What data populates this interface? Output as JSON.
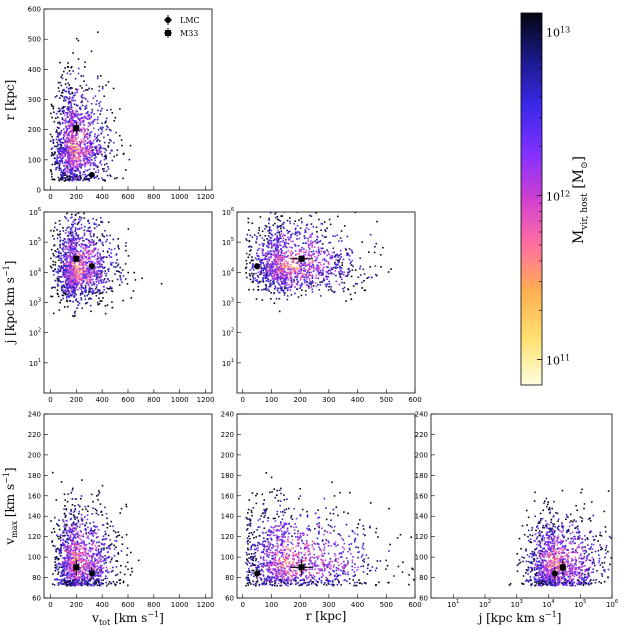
{
  "chart_data": {
    "type": "scatter",
    "title": "",
    "legend": {
      "placement": "top-right of first panel",
      "entries": [
        "LMC",
        "M33"
      ]
    },
    "colorbar": {
      "label": "M_vir,host [M_⊙]",
      "label_main": "M",
      "label_sub": "vir, host",
      "label_unit": " [M",
      "label_unit_end": "]",
      "sun": "⊙",
      "scale": "log",
      "range": [
        70000000000.0,
        13000000000000.0
      ],
      "ticks": [
        {
          "base": "10",
          "exp": "13",
          "value": 10000000000000.0
        },
        {
          "base": "10",
          "exp": "12",
          "value": 1000000000000.0
        },
        {
          "base": "10",
          "exp": "11",
          "value": 100000000000.0
        }
      ],
      "colors": [
        "#ffffe0",
        "#ffe070",
        "#ffb050",
        "#ff70a0",
        "#d040d0",
        "#8030ff",
        "#3a28e8",
        "#1a1a8a",
        "#050510"
      ]
    },
    "labels": {
      "r": "r [kpc]",
      "j_main": "j [kpc km s",
      "j_sup": "−1",
      "j_end": "]",
      "vmax_main": "v",
      "vmax_sub": "max",
      "vmax_unit": " [km s",
      "vmax_sup": "−1",
      "vmax_end": "]",
      "vtot_main": "v",
      "vtot_sub": "tot",
      "vtot_unit": " [km s",
      "vtot_sup": "−1",
      "vtot_end": "]",
      "r_x": "r [kpc]",
      "j_x_main": "j [kpc km s",
      "j_x_sup": "−1",
      "j_x_end": "]"
    },
    "panels": [
      {
        "id": "r_vs_vtot",
        "x": "vtot",
        "y": "r",
        "xlim": [
          -50,
          1250
        ],
        "ylim": [
          0,
          600
        ],
        "xscale": "linear",
        "yscale": "linear",
        "xticks": [
          "0",
          "200",
          "400",
          "600",
          "800",
          "1000",
          "1200"
        ],
        "xtick_values": [
          0,
          200,
          400,
          600,
          800,
          1000,
          1200
        ],
        "yticks": [
          "0",
          "100",
          "200",
          "300",
          "400",
          "500",
          "600"
        ],
        "ytick_values": [
          0,
          100,
          200,
          300,
          400,
          500,
          600
        ],
        "cloud": {
          "cx": 180,
          "cy": 140,
          "sx": 100,
          "sy": 90,
          "n": 1400
        },
        "LMC": {
          "x": 320,
          "y": 50,
          "xerr": 20,
          "yerr": 5
        },
        "M33": {
          "x": 200,
          "y": 205,
          "xerr": 25,
          "yerr": 20
        }
      },
      {
        "id": "j_vs_vtot",
        "x": "vtot",
        "y": "j",
        "xlim": [
          -50,
          1250
        ],
        "ylim": [
          0,
          6
        ],
        "xscale": "linear",
        "yscale": "log",
        "xticks": [
          "0",
          "200",
          "400",
          "600",
          "800",
          "1000",
          "1200"
        ],
        "xtick_values": [
          0,
          200,
          400,
          600,
          800,
          1000,
          1200
        ],
        "yticks": [
          {
            "base": "10",
            "exp": "1",
            "v": 1
          },
          {
            "base": "10",
            "exp": "2",
            "v": 2
          },
          {
            "base": "10",
            "exp": "3",
            "v": 3
          },
          {
            "base": "10",
            "exp": "4",
            "v": 4
          },
          {
            "base": "10",
            "exp": "5",
            "v": 5
          },
          {
            "base": "10",
            "exp": "6",
            "v": 6
          }
        ],
        "cloud": {
          "cx": 200,
          "cy": 4.1,
          "sx": 110,
          "sy": 0.7,
          "n": 1400
        },
        "LMC": {
          "x": 320,
          "y": 4.2,
          "xerr": 20,
          "yerr": 0.1
        },
        "M33": {
          "x": 200,
          "y": 4.45,
          "xerr": 25,
          "yerr": 0.1
        }
      },
      {
        "id": "j_vs_r",
        "x": "r",
        "y": "j",
        "xlim": [
          -20,
          600
        ],
        "ylim": [
          0,
          6
        ],
        "xscale": "linear",
        "yscale": "log",
        "xticks": [
          "0",
          "100",
          "200",
          "300",
          "400",
          "500",
          "600"
        ],
        "xtick_values": [
          0,
          100,
          200,
          300,
          400,
          500,
          600
        ],
        "yticks": [
          {
            "base": "10",
            "exp": "1",
            "v": 1
          },
          {
            "base": "10",
            "exp": "2",
            "v": 2
          },
          {
            "base": "10",
            "exp": "3",
            "v": 3
          },
          {
            "base": "10",
            "exp": "4",
            "v": 4
          },
          {
            "base": "10",
            "exp": "5",
            "v": 5
          },
          {
            "base": "10",
            "exp": "6",
            "v": 6
          }
        ],
        "cloud": {
          "cx": 150,
          "cy": 4.2,
          "sx": 90,
          "sy": 0.6,
          "n": 1400
        },
        "LMC": {
          "x": 50,
          "y": 4.2,
          "xerr": 5,
          "yerr": 0.1
        },
        "M33": {
          "x": 205,
          "y": 4.45,
          "xerr": 40,
          "yerr": 0.1
        }
      },
      {
        "id": "vmax_vs_vtot",
        "x": "vtot",
        "y": "vmax",
        "xlim": [
          -50,
          1250
        ],
        "ylim": [
          60,
          240
        ],
        "xscale": "linear",
        "yscale": "linear",
        "xticks": [
          "0",
          "200",
          "400",
          "600",
          "800",
          "1000",
          "1200"
        ],
        "xtick_values": [
          0,
          200,
          400,
          600,
          800,
          1000,
          1200
        ],
        "yticks": [
          "60",
          "80",
          "100",
          "120",
          "140",
          "160",
          "180",
          "200",
          "220",
          "240"
        ],
        "ytick_values": [
          60,
          80,
          100,
          120,
          140,
          160,
          180,
          200,
          220,
          240
        ],
        "cloud": {
          "cx": 200,
          "cy": 95,
          "sx": 110,
          "sy": 22,
          "n": 1300
        },
        "LMC": {
          "x": 320,
          "y": 84,
          "xerr": 20,
          "yerr": 6
        },
        "M33": {
          "x": 200,
          "y": 90,
          "xerr": 25,
          "yerr": 8
        }
      },
      {
        "id": "vmax_vs_r",
        "x": "r",
        "y": "vmax",
        "xlim": [
          -20,
          600
        ],
        "ylim": [
          60,
          240
        ],
        "xscale": "linear",
        "yscale": "linear",
        "xticks": [
          "0",
          "100",
          "200",
          "300",
          "400",
          "500",
          "600"
        ],
        "xtick_values": [
          0,
          100,
          200,
          300,
          400,
          500,
          600
        ],
        "yticks": [
          "60",
          "80",
          "100",
          "120",
          "140",
          "160",
          "180",
          "200",
          "220",
          "240"
        ],
        "ytick_values": [
          60,
          80,
          100,
          120,
          140,
          160,
          180,
          200,
          220,
          240
        ],
        "cloud": {
          "cx": 160,
          "cy": 95,
          "sx": 110,
          "sy": 22,
          "n": 1300
        },
        "LMC": {
          "x": 50,
          "y": 84,
          "xerr": 5,
          "yerr": 6
        },
        "M33": {
          "x": 205,
          "y": 90,
          "xerr": 40,
          "yerr": 8
        }
      },
      {
        "id": "vmax_vs_j",
        "x": "j",
        "y": "vmax",
        "xlim": [
          0.3,
          6
        ],
        "ylim": [
          60,
          240
        ],
        "xscale": "log",
        "yscale": "linear",
        "xticks": [
          {
            "base": "10",
            "exp": "1",
            "v": 1
          },
          {
            "base": "10",
            "exp": "2",
            "v": 2
          },
          {
            "base": "10",
            "exp": "3",
            "v": 3
          },
          {
            "base": "10",
            "exp": "4",
            "v": 4
          },
          {
            "base": "10",
            "exp": "5",
            "v": 5
          },
          {
            "base": "10",
            "exp": "6",
            "v": 6
          }
        ],
        "yticks": [
          "60",
          "80",
          "100",
          "120",
          "140",
          "160",
          "180",
          "200",
          "220",
          "240"
        ],
        "ytick_values": [
          60,
          80,
          100,
          120,
          140,
          160,
          180,
          200,
          220,
          240
        ],
        "cloud": {
          "cx": 4.2,
          "cy": 92,
          "sx": 0.6,
          "sy": 20,
          "n": 1300
        },
        "LMC": {
          "x": 4.2,
          "y": 84,
          "xerr": 0.1,
          "yerr": 6
        },
        "M33": {
          "x": 4.45,
          "y": 90,
          "xerr": 0.1,
          "yerr": 8
        }
      }
    ]
  }
}
